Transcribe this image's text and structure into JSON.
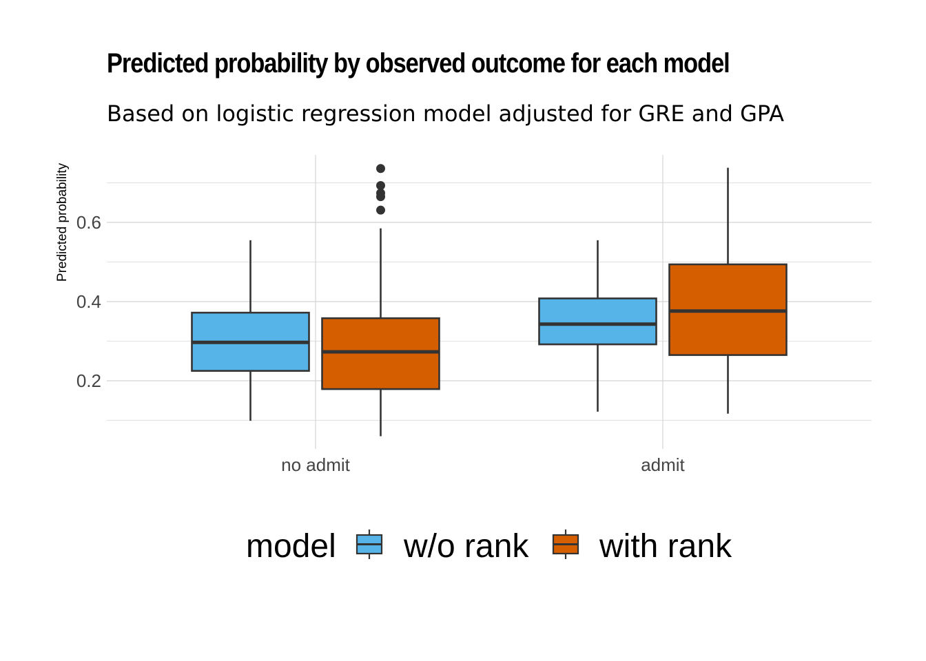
{
  "chart_data": {
    "type": "boxplot",
    "title": "Predicted probability by observed outcome for each model",
    "subtitle": "Based on logistic regression model adjusted for GRE and GPA",
    "ylabel": "Predicted probability",
    "xlabel": "",
    "categories": [
      "no admit",
      "admit"
    ],
    "ylim": [
      0.04,
      0.77
    ],
    "yticks": [
      0.2,
      0.4,
      0.6
    ],
    "ytick_labels": [
      "0.2",
      "0.4",
      "0.6"
    ],
    "grid": true,
    "legend": {
      "title": "model",
      "position": "bottom"
    },
    "series": [
      {
        "name": "w/o rank",
        "color": "#56B4E9",
        "boxes": [
          {
            "category": "no admit",
            "whisker_low": 0.099,
            "q1": 0.225,
            "median": 0.297,
            "q3": 0.372,
            "whisker_high": 0.555,
            "outliers": []
          },
          {
            "category": "admit",
            "whisker_low": 0.122,
            "q1": 0.292,
            "median": 0.343,
            "q3": 0.408,
            "whisker_high": 0.555,
            "outliers": []
          }
        ]
      },
      {
        "name": "with rank",
        "color": "#D55E00",
        "boxes": [
          {
            "category": "no admit",
            "whisker_low": 0.06,
            "q1": 0.179,
            "median": 0.273,
            "q3": 0.358,
            "whisker_high": 0.585,
            "outliers": [
              0.631,
              0.665,
              0.674,
              0.693,
              0.736
            ]
          },
          {
            "category": "admit",
            "whisker_low": 0.117,
            "q1": 0.265,
            "median": 0.376,
            "q3": 0.494,
            "whisker_high": 0.738,
            "outliers": []
          }
        ]
      }
    ]
  }
}
